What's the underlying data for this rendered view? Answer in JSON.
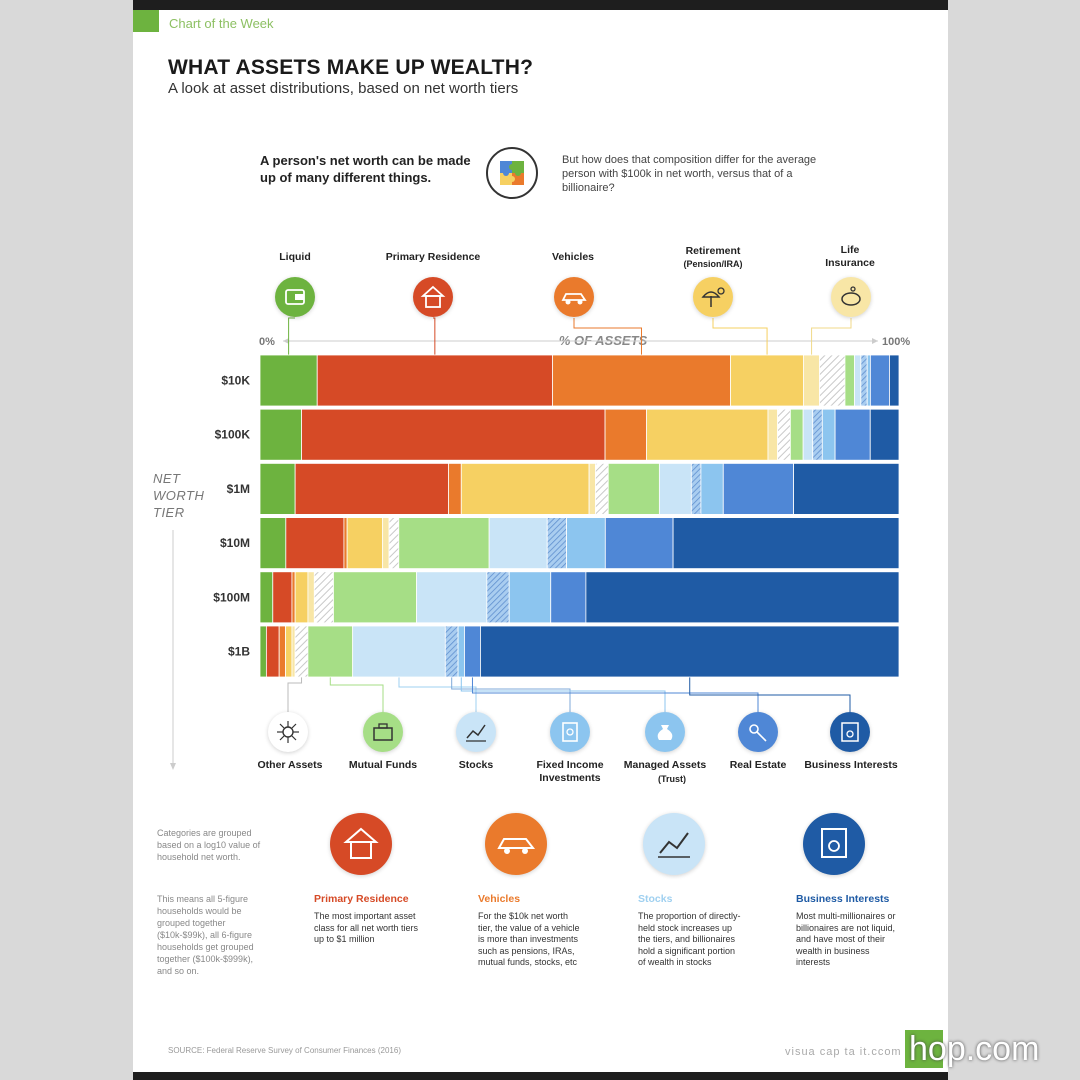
{
  "header": {
    "kicker": "Chart of the Week",
    "title": "WHAT ASSETS MAKE UP WEALTH?",
    "subtitle": "A look at asset distributions, based on net worth tiers"
  },
  "intro": {
    "left": "A person's net worth can be made up of many different things.",
    "right": "But how does that composition differ for the average person with $100k in net worth, versus that of a billionaire?"
  },
  "axis": {
    "min_label": "0%",
    "max_label": "100%",
    "title": "% OF ASSETS"
  },
  "side_label": [
    "NET",
    "WORTH",
    "TIER"
  ],
  "top_legend": [
    {
      "label": "Liquid",
      "color": "#6db33f",
      "icon": "wallet-icon"
    },
    {
      "label": "Primary Residence",
      "color": "#d64a26",
      "icon": "house-icon"
    },
    {
      "label": "Vehicles",
      "color": "#ea7a2c",
      "icon": "car-icon"
    },
    {
      "label": "Retirement",
      "sublabel": "(Pension/IRA)",
      "color": "#f6d062",
      "icon": "beach-icon"
    },
    {
      "label": "Life Insurance",
      "color": "#f8e6a6",
      "icon": "piggy-bank-icon"
    }
  ],
  "bottom_legend": [
    {
      "label": "Other Assets",
      "color": "#ffffff",
      "icon": "network-icon"
    },
    {
      "label": "Mutual Funds",
      "color": "#a6de86",
      "icon": "briefcase-icon"
    },
    {
      "label": "Stocks",
      "color": "#c9e4f7",
      "icon": "stock-chart-icon"
    },
    {
      "label": "Fixed Income Investments",
      "color": "#8cc5ef",
      "icon": "bond-icon"
    },
    {
      "label": "Managed Assets",
      "sublabel": "(Trust)",
      "color": "#8cc5ef",
      "icon": "money-bag-icon"
    },
    {
      "label": "Real Estate",
      "color": "#4f87d6",
      "icon": "keys-icon"
    },
    {
      "label": "Business Interests",
      "color": "#1f5ba5",
      "icon": "certificate-icon"
    }
  ],
  "chart_data": {
    "type": "bar",
    "orientation": "horizontal-stacked-100",
    "xlim": [
      0,
      100
    ],
    "x_unit": "% of assets",
    "categories": [
      "$10K",
      "$100K",
      "$1M",
      "$10M",
      "$100M",
      "$1B"
    ],
    "series": [
      {
        "name": "Liquid",
        "color": "#6db33f",
        "values": [
          9,
          6.5,
          5.5,
          4,
          2,
          1
        ]
      },
      {
        "name": "Primary Residence",
        "color": "#d64a26",
        "values": [
          37,
          47.5,
          24,
          9,
          3,
          2
        ]
      },
      {
        "name": "Vehicles",
        "color": "#ea7a2c",
        "values": [
          28,
          6.5,
          2,
          0.5,
          0.5,
          1
        ]
      },
      {
        "name": "Retirement",
        "color": "#f6d062",
        "values": [
          11.5,
          19,
          20,
          5.5,
          2,
          1
        ]
      },
      {
        "name": "Life Insurance",
        "color": "#f8e6a6",
        "values": [
          2.5,
          1.5,
          1,
          1,
          1,
          0.5
        ]
      },
      {
        "name": "Other Assets",
        "color": "#f2f2f2",
        "values": [
          4,
          2,
          2,
          1.5,
          3,
          2
        ]
      },
      {
        "name": "Mutual Funds",
        "color": "#a6de86",
        "values": [
          1.5,
          2,
          8,
          14,
          13,
          7
        ]
      },
      {
        "name": "Stocks",
        "color": "#c9e4f7",
        "values": [
          1,
          1.5,
          5,
          9,
          11,
          14.5
        ]
      },
      {
        "name": "Fixed Income Investments",
        "color": "#7fa9d9",
        "values": [
          1,
          1.5,
          1.5,
          3,
          3.5,
          2
        ]
      },
      {
        "name": "Managed Assets",
        "color": "#8cc5ef",
        "values": [
          0.5,
          2,
          3.5,
          6,
          6.5,
          1
        ]
      },
      {
        "name": "Real Estate",
        "color": "#4f87d6",
        "values": [
          3,
          5.5,
          11,
          10.5,
          5.5,
          2.5
        ]
      },
      {
        "name": "Business Interests",
        "color": "#1f5ba5",
        "values": [
          1.5,
          4.5,
          16.5,
          35,
          49,
          65.5
        ]
      }
    ]
  },
  "notes": {
    "a": "Categories are grouped based on a log10 value of household net worth.",
    "b": "This means all 5-figure households would be grouped together ($10k-$99k), all 6-figure households get grouped together ($100k-$999k), and so on."
  },
  "callouts": [
    {
      "title": "Primary Residence",
      "color": "#d64a26",
      "text": "The most important asset class for all net worth tiers up to $1 million",
      "icon": "house-icon"
    },
    {
      "title": "Vehicles",
      "color": "#ea7a2c",
      "text": "For the $10k net worth tier, the value of a vehicle is more than investments such as pensions, IRAs, mutual funds, stocks, etc",
      "icon": "car-icon"
    },
    {
      "title": "Stocks",
      "color": "#9fd0f0",
      "text": "The proportion of directly-held stock increases up the tiers, and billionaires hold a significant portion of wealth in stocks",
      "icon": "stock-chart-icon"
    },
    {
      "title": "Business Interests",
      "color": "#1f5ba5",
      "text": "Most multi-millionaires or billionaires are not liquid, and have most of their wealth in business interests",
      "icon": "certificate-icon"
    }
  ],
  "footer": {
    "source": "SOURCE: Federal Reserve Survey of Consumer Finances (2016)",
    "credit": "visua cap ta it.ccom",
    "watermark": "hop.com"
  }
}
